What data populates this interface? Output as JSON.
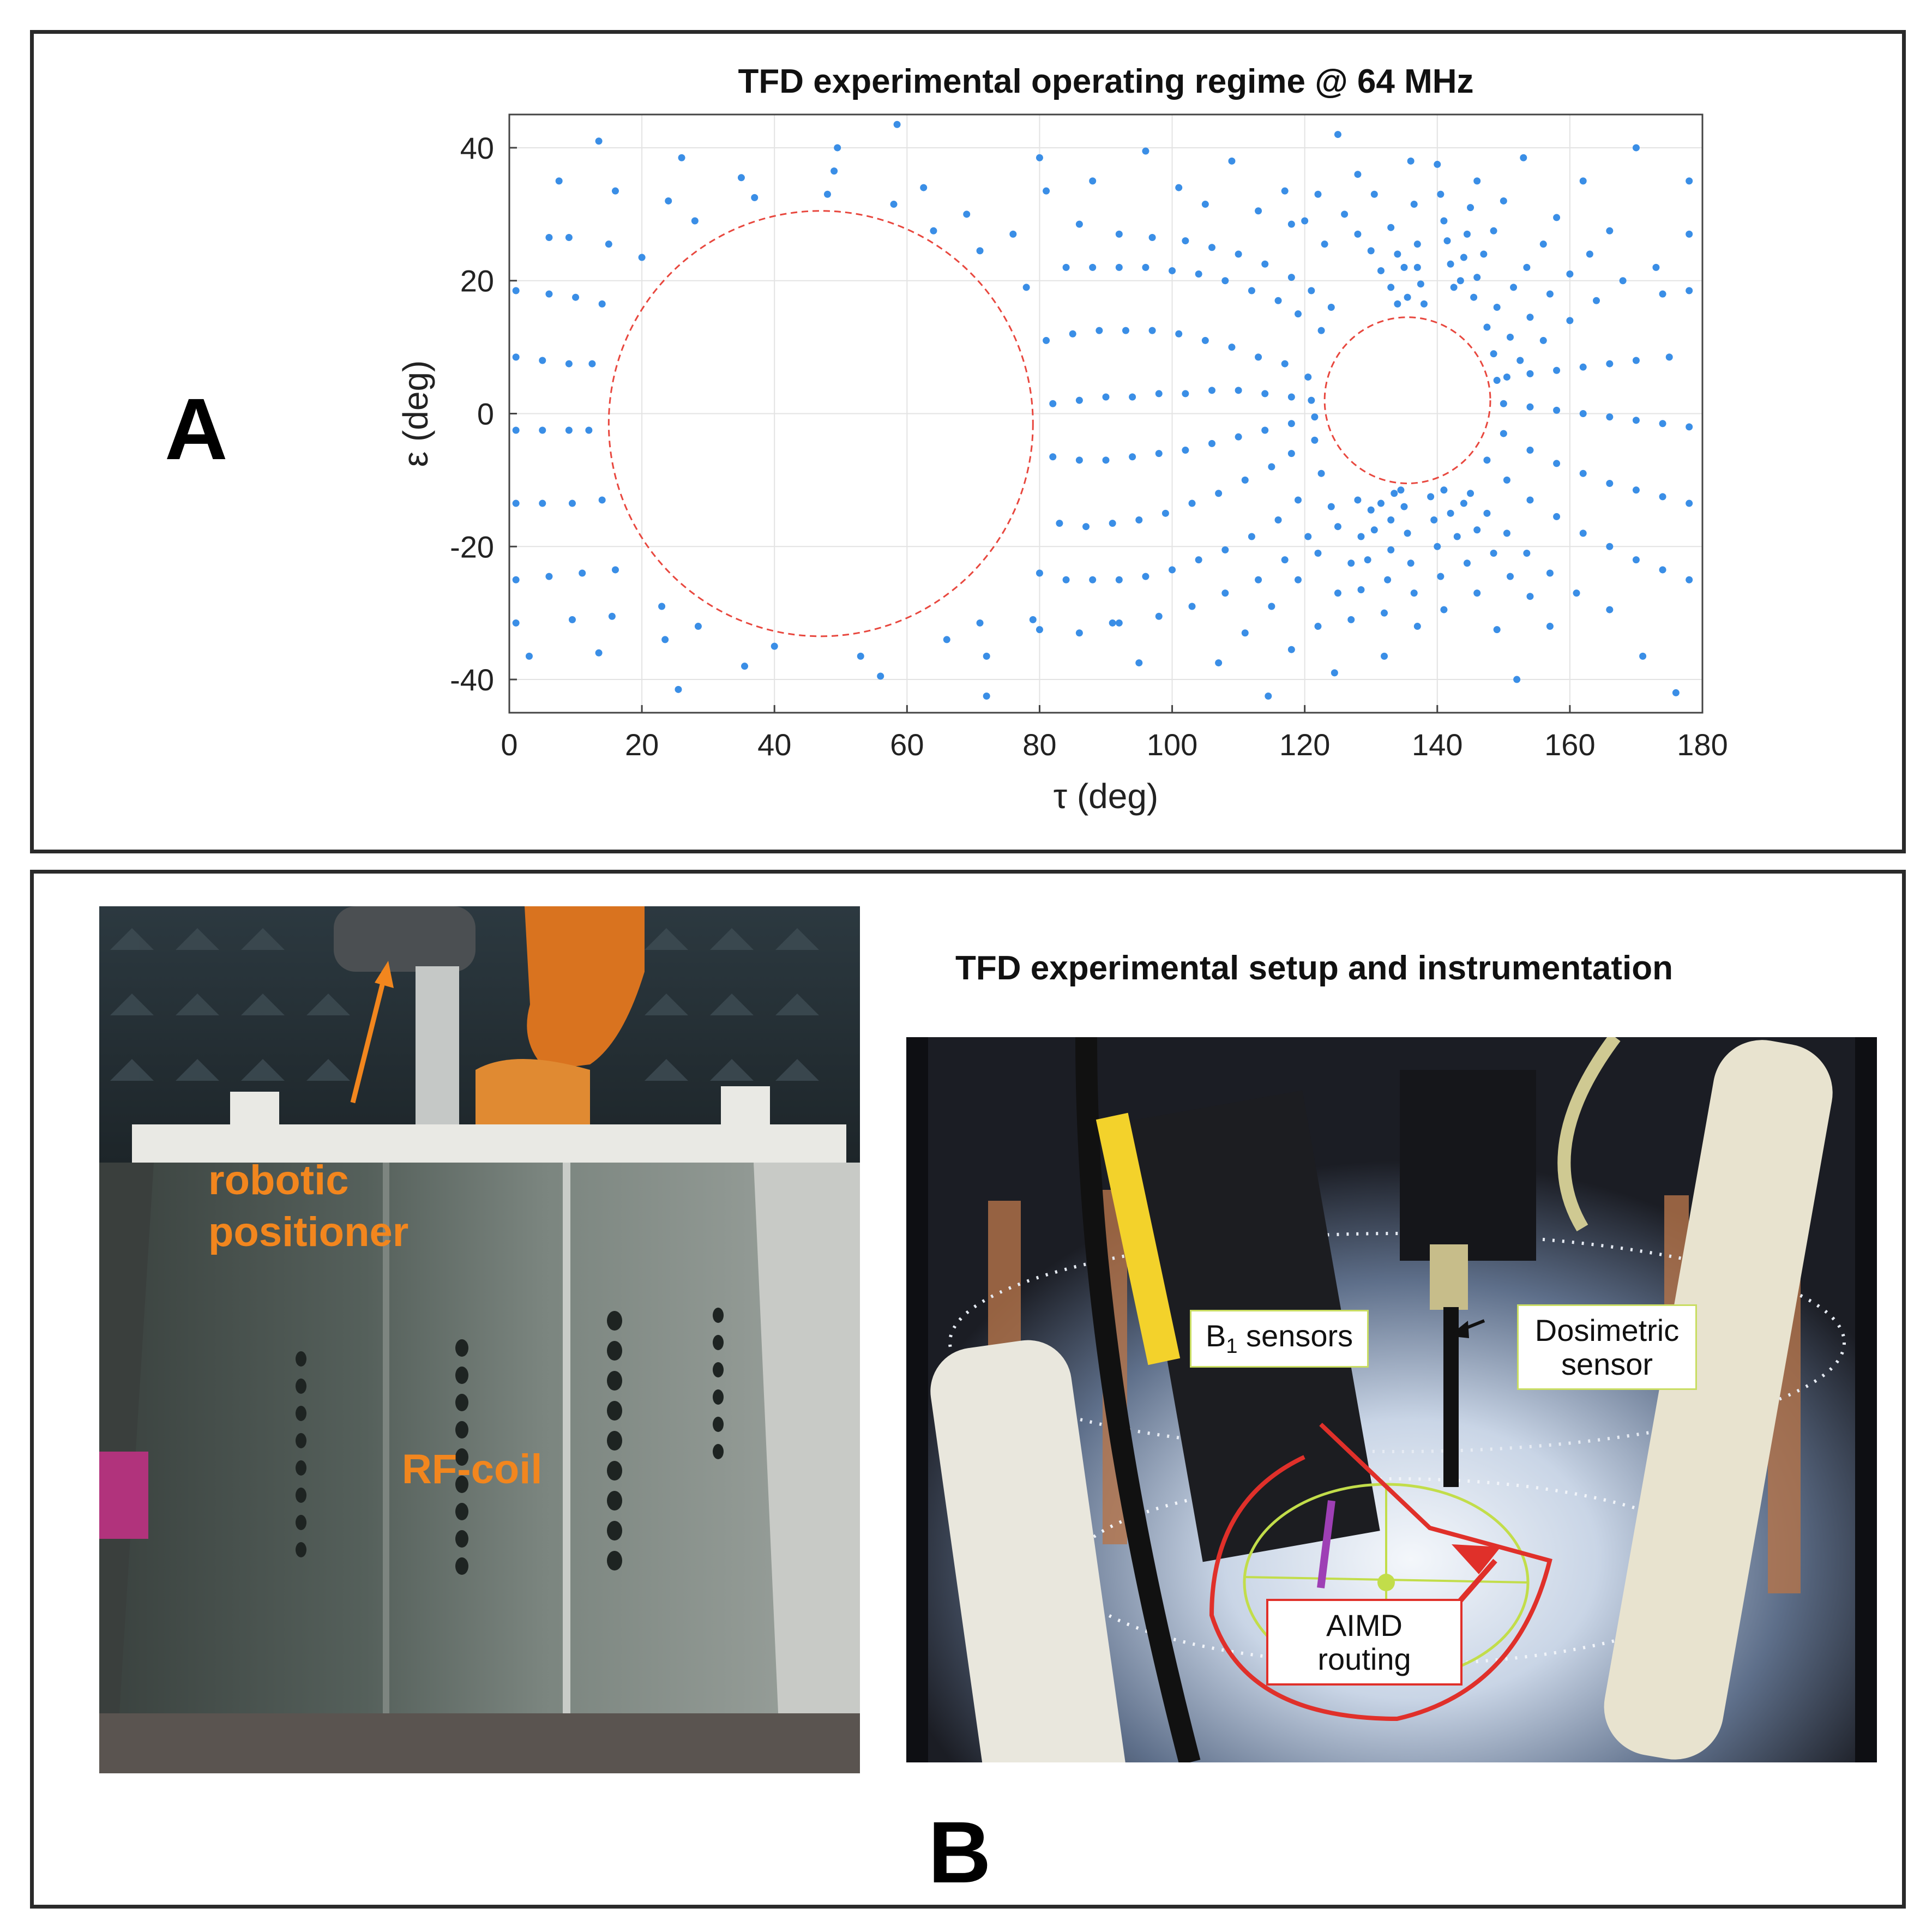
{
  "panel_a": {
    "letter": "A"
  },
  "panel_b": {
    "letter": "B",
    "title": "TFD experimental setup and instrumentation",
    "left_photo": {
      "label_positioner_line1": "robotic",
      "label_positioner_line2": "positioner",
      "label_coil": "RF-coil"
    },
    "right_photo": {
      "b1_label": "B",
      "b1_subscript": "1",
      "b1_suffix": " sensors",
      "dosimetric_line1": "Dosimetric",
      "dosimetric_line2": "sensor",
      "aimd_line1": "AIMD",
      "aimd_line2": "routing"
    }
  },
  "colors": {
    "points": "#3a8ee6",
    "circles": "#e8473e",
    "orange_label": "#f2861e",
    "callout_red": "#e0302a",
    "callout_green": "#c9dd62"
  },
  "chart_data": {
    "type": "scatter",
    "title": "TFD experimental operating regime @ 64 MHz",
    "xlabel": "τ (deg)",
    "ylabel": "ε (deg)",
    "xlim": [
      0,
      180
    ],
    "ylim": [
      -45,
      45
    ],
    "xticks": [
      0,
      20,
      40,
      60,
      80,
      100,
      120,
      140,
      160,
      180
    ],
    "yticks": [
      -40,
      -20,
      0,
      20,
      40
    ],
    "grid": true,
    "excluded_regions": [
      {
        "center": [
          47,
          -1.5
        ],
        "radius_x": 32,
        "radius_y": 32,
        "style": "dashed"
      },
      {
        "center": [
          135.5,
          2
        ],
        "radius_x": 12.5,
        "radius_y": 12.5,
        "style": "dashed"
      }
    ],
    "points": [
      [
        1,
        18.5
      ],
      [
        6,
        18
      ],
      [
        10,
        17.5
      ],
      [
        14,
        16.5
      ],
      [
        1,
        8.5
      ],
      [
        5,
        8
      ],
      [
        9,
        7.5
      ],
      [
        12.5,
        7.5
      ],
      [
        1,
        -2.5
      ],
      [
        5,
        -2.5
      ],
      [
        9,
        -2.5
      ],
      [
        12,
        -2.5
      ],
      [
        1,
        -13.5
      ],
      [
        5,
        -13.5
      ],
      [
        9.5,
        -13.5
      ],
      [
        14,
        -13
      ],
      [
        1,
        -25
      ],
      [
        6,
        -24.5
      ],
      [
        11,
        -24
      ],
      [
        16,
        -23.5
      ],
      [
        1,
        -31.5
      ],
      [
        9.5,
        -31
      ],
      [
        15.5,
        -30.5
      ],
      [
        3,
        -36.5
      ],
      [
        13.5,
        -36
      ],
      [
        6,
        26.5
      ],
      [
        9,
        26.5
      ],
      [
        15,
        25.5
      ],
      [
        20,
        23.5
      ],
      [
        7.5,
        35
      ],
      [
        16,
        33.5
      ],
      [
        24,
        32
      ],
      [
        28,
        29
      ],
      [
        13.5,
        41
      ],
      [
        26,
        38.5
      ],
      [
        35,
        35.5
      ],
      [
        37,
        32.5
      ],
      [
        49.5,
        40
      ],
      [
        49,
        36.5
      ],
      [
        48,
        33
      ],
      [
        58.5,
        43.5
      ],
      [
        58,
        31.5
      ],
      [
        62.5,
        34
      ],
      [
        64,
        27.5
      ],
      [
        23,
        -29
      ],
      [
        23.5,
        -34
      ],
      [
        28.5,
        -32
      ],
      [
        25.5,
        -41.5
      ],
      [
        35.5,
        -38
      ],
      [
        40,
        -35
      ],
      [
        53,
        -36.5
      ],
      [
        56,
        -39.5
      ],
      [
        66,
        -34
      ],
      [
        71,
        -31.5
      ],
      [
        72,
        -36.5
      ],
      [
        72,
        -42.5
      ],
      [
        79,
        -31
      ],
      [
        69,
        30
      ],
      [
        71,
        24.5
      ],
      [
        76,
        27
      ],
      [
        78,
        19
      ],
      [
        80,
        38.5
      ],
      [
        81,
        11
      ],
      [
        85,
        12
      ],
      [
        89,
        12.5
      ],
      [
        93,
        12.5
      ],
      [
        97,
        12.5
      ],
      [
        101,
        12
      ],
      [
        105,
        11
      ],
      [
        109,
        10
      ],
      [
        113,
        8.5
      ],
      [
        117,
        7.5
      ],
      [
        120.5,
        5.5
      ],
      [
        82,
        1.5
      ],
      [
        86,
        2
      ],
      [
        90,
        2.5
      ],
      [
        94,
        2.5
      ],
      [
        98,
        3
      ],
      [
        102,
        3
      ],
      [
        106,
        3.5
      ],
      [
        110,
        3.5
      ],
      [
        114,
        3
      ],
      [
        118,
        2.5
      ],
      [
        121,
        2
      ],
      [
        82,
        -6.5
      ],
      [
        86,
        -7
      ],
      [
        90,
        -7
      ],
      [
        94,
        -6.5
      ],
      [
        98,
        -6
      ],
      [
        102,
        -5.5
      ],
      [
        106,
        -4.5
      ],
      [
        110,
        -3.5
      ],
      [
        114,
        -2.5
      ],
      [
        118,
        -1.5
      ],
      [
        121.5,
        -0.5
      ],
      [
        83,
        -16.5
      ],
      [
        87,
        -17
      ],
      [
        91,
        -16.5
      ],
      [
        95,
        -16
      ],
      [
        99,
        -15
      ],
      [
        103,
        -13.5
      ],
      [
        107,
        -12
      ],
      [
        111,
        -10
      ],
      [
        115,
        -8
      ],
      [
        118,
        -6
      ],
      [
        121.5,
        -4
      ],
      [
        80,
        -24
      ],
      [
        84,
        -25
      ],
      [
        88,
        -25
      ],
      [
        92,
        -25
      ],
      [
        96,
        -24.5
      ],
      [
        100,
        -23.5
      ],
      [
        104,
        -22
      ],
      [
        108,
        -20.5
      ],
      [
        112,
        -18.5
      ],
      [
        116,
        -16
      ],
      [
        119,
        -13
      ],
      [
        122.5,
        -9
      ],
      [
        80,
        -32.5
      ],
      [
        86,
        -33
      ],
      [
        92,
        -31.5
      ],
      [
        98,
        -30.5
      ],
      [
        103,
        -29
      ],
      [
        108,
        -27
      ],
      [
        113,
        -25
      ],
      [
        117,
        -22
      ],
      [
        120.5,
        -18.5
      ],
      [
        124,
        -14
      ],
      [
        81,
        33.5
      ],
      [
        86,
        28.5
      ],
      [
        92,
        27
      ],
      [
        97,
        26.5
      ],
      [
        102,
        26
      ],
      [
        106,
        25
      ],
      [
        110,
        24
      ],
      [
        114,
        22.5
      ],
      [
        118,
        20.5
      ],
      [
        121,
        18.5
      ],
      [
        124,
        16
      ],
      [
        84,
        22
      ],
      [
        88,
        22
      ],
      [
        92,
        22
      ],
      [
        96,
        22
      ],
      [
        100,
        21.5
      ],
      [
        104,
        21
      ],
      [
        108,
        20
      ],
      [
        112,
        18.5
      ],
      [
        116,
        17
      ],
      [
        119,
        15
      ],
      [
        122.5,
        12.5
      ],
      [
        88,
        35
      ],
      [
        96,
        39.5
      ],
      [
        101,
        34
      ],
      [
        105,
        31.5
      ],
      [
        109,
        38
      ],
      [
        113,
        30.5
      ],
      [
        117,
        33.5
      ],
      [
        120,
        29
      ],
      [
        123,
        25.5
      ],
      [
        125,
        42
      ],
      [
        128,
        36
      ],
      [
        130.5,
        33
      ],
      [
        133,
        28
      ],
      [
        134,
        24
      ],
      [
        135,
        22
      ],
      [
        135.5,
        17.5
      ],
      [
        118,
        28.5
      ],
      [
        122,
        33
      ],
      [
        126,
        30
      ],
      [
        128,
        27
      ],
      [
        130,
        24.5
      ],
      [
        131.5,
        21.5
      ],
      [
        133,
        19
      ],
      [
        134,
        16.5
      ],
      [
        136,
        38
      ],
      [
        136.5,
        31.5
      ],
      [
        137,
        25.5
      ],
      [
        137,
        22
      ],
      [
        137.5,
        19.5
      ],
      [
        138,
        16.5
      ],
      [
        140,
        37.5
      ],
      [
        140.5,
        33
      ],
      [
        141,
        29
      ],
      [
        141.5,
        26
      ],
      [
        142,
        22.5
      ],
      [
        142.5,
        19
      ],
      [
        146,
        35
      ],
      [
        145,
        31
      ],
      [
        144.5,
        27
      ],
      [
        144,
        23.5
      ],
      [
        143.5,
        20
      ],
      [
        153,
        38.5
      ],
      [
        150,
        32
      ],
      [
        148.5,
        27.5
      ],
      [
        147,
        24
      ],
      [
        146,
        20.5
      ],
      [
        145.5,
        17.5
      ],
      [
        162,
        35
      ],
      [
        158,
        29.5
      ],
      [
        156,
        25.5
      ],
      [
        153.5,
        22
      ],
      [
        151.5,
        19
      ],
      [
        149,
        16
      ],
      [
        147.5,
        13
      ],
      [
        170,
        40
      ],
      [
        166,
        27.5
      ],
      [
        163,
        24
      ],
      [
        160,
        21
      ],
      [
        157,
        18
      ],
      [
        154,
        14.5
      ],
      [
        151,
        11.5
      ],
      [
        148.5,
        9
      ],
      [
        178,
        35
      ],
      [
        173,
        22
      ],
      [
        168,
        20
      ],
      [
        164,
        17
      ],
      [
        160,
        14
      ],
      [
        156,
        11
      ],
      [
        152.5,
        8
      ],
      [
        149,
        5
      ],
      [
        178,
        27
      ],
      [
        175,
        8.5
      ],
      [
        170,
        8
      ],
      [
        166,
        7.5
      ],
      [
        162,
        7
      ],
      [
        158,
        6.5
      ],
      [
        154,
        6
      ],
      [
        150.5,
        5.5
      ],
      [
        178,
        18.5
      ],
      [
        174,
        18
      ],
      [
        178,
        -2
      ],
      [
        174,
        -1.5
      ],
      [
        170,
        -1
      ],
      [
        166,
        -0.5
      ],
      [
        162,
        0
      ],
      [
        158,
        0.5
      ],
      [
        154,
        1
      ],
      [
        150,
        1.5
      ],
      [
        178,
        -13.5
      ],
      [
        174,
        -12.5
      ],
      [
        170,
        -11.5
      ],
      [
        166,
        -10.5
      ],
      [
        162,
        -9
      ],
      [
        158,
        -7.5
      ],
      [
        154,
        -5.5
      ],
      [
        150,
        -3
      ],
      [
        178,
        -25
      ],
      [
        174,
        -23.5
      ],
      [
        170,
        -22
      ],
      [
        166,
        -20
      ],
      [
        162,
        -18
      ],
      [
        158,
        -15.5
      ],
      [
        154,
        -13
      ],
      [
        150.5,
        -10
      ],
      [
        147.5,
        -7
      ],
      [
        176,
        -42
      ],
      [
        171,
        -36.5
      ],
      [
        166,
        -29.5
      ],
      [
        161,
        -27
      ],
      [
        157,
        -24
      ],
      [
        153.5,
        -21
      ],
      [
        150.5,
        -18
      ],
      [
        147.5,
        -15
      ],
      [
        145,
        -12
      ],
      [
        157,
        -32
      ],
      [
        154,
        -27.5
      ],
      [
        151,
        -24.5
      ],
      [
        148.5,
        -21
      ],
      [
        146,
        -17.5
      ],
      [
        144,
        -13.5
      ],
      [
        152,
        -40
      ],
      [
        149,
        -32.5
      ],
      [
        146,
        -27
      ],
      [
        144.5,
        -22.5
      ],
      [
        143,
        -18.5
      ],
      [
        142,
        -15
      ],
      [
        141,
        -11.5
      ],
      [
        141,
        -29.5
      ],
      [
        140.5,
        -24.5
      ],
      [
        140,
        -20
      ],
      [
        139.5,
        -16
      ],
      [
        139,
        -12.5
      ],
      [
        137,
        -32
      ],
      [
        136.5,
        -27
      ],
      [
        136,
        -22.5
      ],
      [
        135.5,
        -18
      ],
      [
        135,
        -14
      ],
      [
        134.5,
        -11.5
      ],
      [
        132,
        -36.5
      ],
      [
        132,
        -30
      ],
      [
        132.5,
        -25
      ],
      [
        133,
        -20.5
      ],
      [
        133,
        -16
      ],
      [
        133.5,
        -12
      ],
      [
        124.5,
        -39
      ],
      [
        127,
        -31
      ],
      [
        128.5,
        -26.5
      ],
      [
        129.5,
        -22
      ],
      [
        130.5,
        -17.5
      ],
      [
        131.5,
        -13.5
      ],
      [
        114.5,
        -42.5
      ],
      [
        118,
        -35.5
      ],
      [
        122,
        -32
      ],
      [
        125,
        -27
      ],
      [
        127,
        -22.5
      ],
      [
        128.5,
        -18.5
      ],
      [
        130,
        -14.5
      ],
      [
        107,
        -37.5
      ],
      [
        111,
        -33
      ],
      [
        115,
        -29
      ],
      [
        119,
        -25
      ],
      [
        122,
        -21
      ],
      [
        125,
        -17
      ],
      [
        128,
        -13
      ],
      [
        91,
        -31.5
      ],
      [
        95,
        -37.5
      ]
    ]
  }
}
